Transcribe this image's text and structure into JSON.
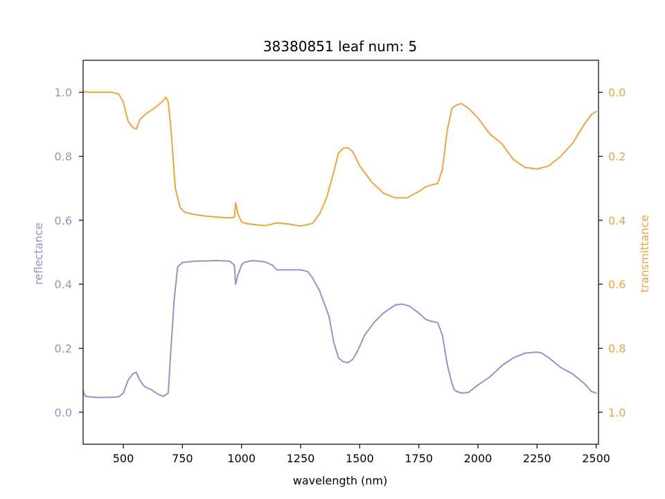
{
  "chart_data": {
    "type": "line",
    "title": "38380851 leaf num: 5",
    "xlabel": "wavelength (nm)",
    "ylabel_left": "reflectance",
    "ylabel_right": "transmittance",
    "xlim": [
      330,
      2510
    ],
    "ylim_left": [
      -0.1,
      1.1
    ],
    "ylim_right": [
      1.1,
      -0.1
    ],
    "right_axis_inverted": true,
    "grid": false,
    "x_ticks": [
      500,
      750,
      1000,
      1250,
      1500,
      1750,
      2000,
      2250,
      2500
    ],
    "x_tick_labels": [
      "500",
      "750",
      "1000",
      "1250",
      "1500",
      "1750",
      "2000",
      "2250",
      "2500"
    ],
    "y_left_ticks": [
      0.0,
      0.2,
      0.4,
      0.6,
      0.8,
      1.0
    ],
    "y_left_tick_labels": [
      "0.0",
      "0.2",
      "0.4",
      "0.6",
      "0.8",
      "1.0"
    ],
    "y_right_ticks": [
      0.0,
      0.2,
      0.4,
      0.6,
      0.8,
      1.0
    ],
    "y_right_tick_labels": [
      "0.0",
      "0.2",
      "0.4",
      "0.6",
      "0.8",
      "1.0"
    ],
    "colors": {
      "reflectance": "#9891c6",
      "transmittance": "#eda43f",
      "axis": "#000000"
    },
    "series": [
      {
        "axis": "left",
        "color": "#9891c6",
        "x": [
          330,
          340,
          360,
          400,
          450,
          480,
          500,
          520,
          540,
          555,
          570,
          590,
          620,
          650,
          670,
          690,
          700,
          715,
          730,
          750,
          800,
          850,
          900,
          950,
          970,
          975,
          985,
          1000,
          1010,
          1030,
          1050,
          1100,
          1130,
          1150,
          1200,
          1250,
          1280,
          1300,
          1330,
          1370,
          1390,
          1410,
          1430,
          1450,
          1470,
          1490,
          1520,
          1560,
          1600,
          1650,
          1680,
          1710,
          1750,
          1780,
          1800,
          1830,
          1850,
          1870,
          1890,
          1900,
          1910,
          1930,
          1960,
          2000,
          2050,
          2100,
          2150,
          2200,
          2250,
          2270,
          2300,
          2350,
          2400,
          2450,
          2480,
          2500
        ],
        "y": [
          0.065,
          0.05,
          0.048,
          0.046,
          0.047,
          0.048,
          0.06,
          0.1,
          0.12,
          0.125,
          0.1,
          0.08,
          0.07,
          0.055,
          0.05,
          0.06,
          0.18,
          0.35,
          0.455,
          0.468,
          0.472,
          0.473,
          0.474,
          0.472,
          0.46,
          0.4,
          0.43,
          0.46,
          0.468,
          0.472,
          0.474,
          0.47,
          0.46,
          0.445,
          0.445,
          0.445,
          0.44,
          0.42,
          0.38,
          0.3,
          0.22,
          0.17,
          0.158,
          0.155,
          0.165,
          0.19,
          0.24,
          0.28,
          0.31,
          0.335,
          0.338,
          0.332,
          0.31,
          0.29,
          0.285,
          0.28,
          0.24,
          0.15,
          0.09,
          0.07,
          0.065,
          0.06,
          0.062,
          0.085,
          0.11,
          0.145,
          0.17,
          0.185,
          0.188,
          0.185,
          0.17,
          0.14,
          0.12,
          0.09,
          0.065,
          0.06
        ]
      },
      {
        "axis": "right",
        "color": "#eda43f",
        "x": [
          330,
          340,
          360,
          400,
          450,
          480,
          500,
          520,
          540,
          555,
          570,
          600,
          640,
          670,
          680,
          690,
          700,
          720,
          740,
          760,
          800,
          850,
          900,
          950,
          970,
          975,
          985,
          1000,
          1020,
          1050,
          1100,
          1150,
          1200,
          1250,
          1300,
          1330,
          1360,
          1390,
          1410,
          1430,
          1450,
          1470,
          1500,
          1550,
          1600,
          1650,
          1700,
          1750,
          1780,
          1800,
          1830,
          1850,
          1870,
          1890,
          1910,
          1930,
          1960,
          2000,
          2050,
          2100,
          2150,
          2200,
          2250,
          2300,
          2350,
          2400,
          2450,
          2480,
          2500
        ],
        "y": [
          0.0,
          -0.002,
          0.0,
          0.0,
          0.0,
          0.005,
          0.03,
          0.09,
          0.11,
          0.115,
          0.085,
          0.065,
          0.045,
          0.025,
          0.015,
          0.03,
          0.1,
          0.3,
          0.36,
          0.375,
          0.382,
          0.387,
          0.39,
          0.393,
          0.39,
          0.345,
          0.38,
          0.405,
          0.41,
          0.413,
          0.417,
          0.408,
          0.412,
          0.418,
          0.41,
          0.38,
          0.33,
          0.25,
          0.19,
          0.175,
          0.173,
          0.185,
          0.23,
          0.28,
          0.315,
          0.33,
          0.33,
          0.31,
          0.295,
          0.29,
          0.285,
          0.24,
          0.12,
          0.05,
          0.04,
          0.035,
          0.05,
          0.08,
          0.13,
          0.16,
          0.21,
          0.235,
          0.24,
          0.23,
          0.2,
          0.16,
          0.1,
          0.07,
          0.06
        ]
      }
    ]
  }
}
